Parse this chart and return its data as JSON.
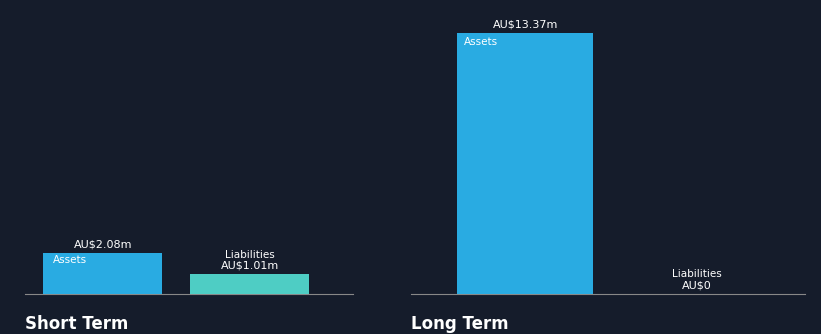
{
  "background_color": "#151C2B",
  "short_term": {
    "assets_value": 2.08,
    "liabilities_value": 1.01,
    "assets_label": "Assets",
    "liabilities_label": "Liabilities",
    "assets_color": "#29ABE2",
    "liabilities_color": "#4ECDC4",
    "assets_value_label": "AU$2.08m",
    "liabilities_value_label": "AU$1.01m",
    "title": "Short Term"
  },
  "long_term": {
    "assets_value": 13.37,
    "liabilities_value": 0,
    "assets_label": "Assets",
    "liabilities_label": "Liabilities",
    "assets_color": "#29ABE2",
    "liabilities_color": "#4ECDC4",
    "assets_value_label": "AU$13.37m",
    "liabilities_value_label": "AU$0",
    "title": "Long Term"
  },
  "text_color": "#FFFFFF",
  "axis_line_color": "#888888",
  "font_size_labels": 8,
  "font_size_titles": 12,
  "font_size_bar_labels": 7.5
}
